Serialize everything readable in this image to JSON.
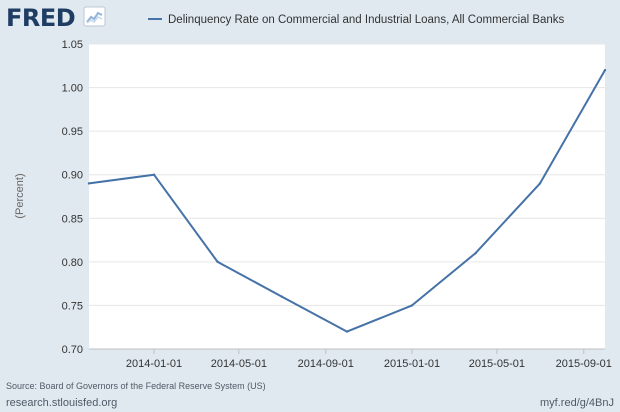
{
  "branding": {
    "logo_text": "FRED",
    "logo_icon": "line-chart-icon"
  },
  "colors": {
    "background": "#e1e9f0",
    "plot_background": "#ffffff",
    "series_line": "#4572a7",
    "logo_text": "#1f3d63",
    "logo_accent": "#8fb3d9"
  },
  "chart_data": {
    "type": "line",
    "title": "",
    "xlabel": "",
    "ylabel": "(Percent)",
    "ylim": [
      0.7,
      1.05
    ],
    "yticks": [
      0.7,
      0.75,
      0.8,
      0.85,
      0.9,
      0.95,
      1.0,
      1.05
    ],
    "ytick_labels": [
      "0.70",
      "0.75",
      "0.80",
      "0.85",
      "0.90",
      "0.95",
      "1.00",
      "1.05"
    ],
    "xlim": [
      "2013-10-01",
      "2015-10-01"
    ],
    "xticks": [
      "2014-01-01",
      "2014-05-01",
      "2014-09-01",
      "2015-01-01",
      "2015-05-01",
      "2015-09-01"
    ],
    "grid": true,
    "legend_position": "top",
    "series": [
      {
        "name": "Delinquency Rate on Commercial and Industrial Loans, All Commercial Banks",
        "x": [
          "2013-10-01",
          "2014-01-01",
          "2014-04-01",
          "2014-07-01",
          "2014-10-01",
          "2015-01-01",
          "2015-04-01",
          "2015-07-01",
          "2015-10-01"
        ],
        "values": [
          0.89,
          0.9,
          0.8,
          0.76,
          0.72,
          0.75,
          0.81,
          0.89,
          1.02
        ]
      }
    ]
  },
  "footer": {
    "source": "Source: Board of Governors of the Federal Reserve System (US)",
    "site": "research.stlouisfed.org",
    "short_link": "myf.red/g/4BnJ"
  }
}
